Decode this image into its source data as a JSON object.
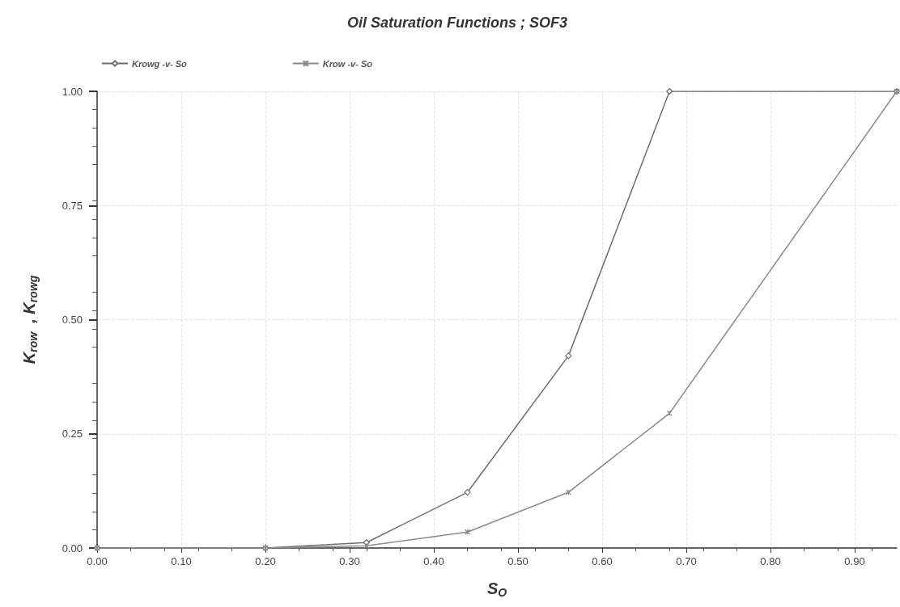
{
  "chart_data": {
    "type": "line",
    "title": "Oil Saturation Functions ; SOF3",
    "xlabel": "S$_{O}$",
    "ylabel": "K$_{row}$  , K$_{rowg}$",
    "xlim": [
      0,
      0.95
    ],
    "xticks": [
      {
        "value": 0,
        "label": "0.00"
      },
      {
        "value": 0.1,
        "label": "0.10"
      },
      {
        "value": 0.2,
        "label": "0.20"
      },
      {
        "value": 0.3,
        "label": "0.30"
      },
      {
        "value": 0.4,
        "label": "0.40"
      },
      {
        "value": 0.5,
        "label": "0.50"
      },
      {
        "value": 0.6,
        "label": "0.60"
      },
      {
        "value": 0.7,
        "label": "0.70"
      },
      {
        "value": 0.8,
        "label": "0.80"
      },
      {
        "value": 0.9,
        "label": "0.90"
      }
    ],
    "ylim": [
      0,
      1
    ],
    "yticks": [
      {
        "value": 0,
        "label": "0.00"
      },
      {
        "value": 0.25,
        "label": "0.25"
      },
      {
        "value": 0.5,
        "label": "0.50"
      },
      {
        "value": 0.75,
        "label": "0.75"
      },
      {
        "value": 1,
        "label": "1.00"
      }
    ],
    "grid": true,
    "legend": "top left",
    "series": [
      {
        "name": "Krowg -v- So",
        "color": "#6e6e6e",
        "marker": "diamond",
        "x": [
          0,
          0.2,
          0.32,
          0.44,
          0.56,
          0.68,
          0.95
        ],
        "values": [
          0,
          0,
          0.012,
          0.122,
          0.421,
          1,
          1
        ]
      },
      {
        "name": "Krow -v- So",
        "color": "#8a8a8a",
        "marker": "cross",
        "x": [
          0,
          0.2,
          0.32,
          0.44,
          0.56,
          0.68,
          0.95
        ],
        "values": [
          0,
          0,
          0.005,
          0.035,
          0.122,
          0.295,
          1
        ]
      }
    ]
  }
}
